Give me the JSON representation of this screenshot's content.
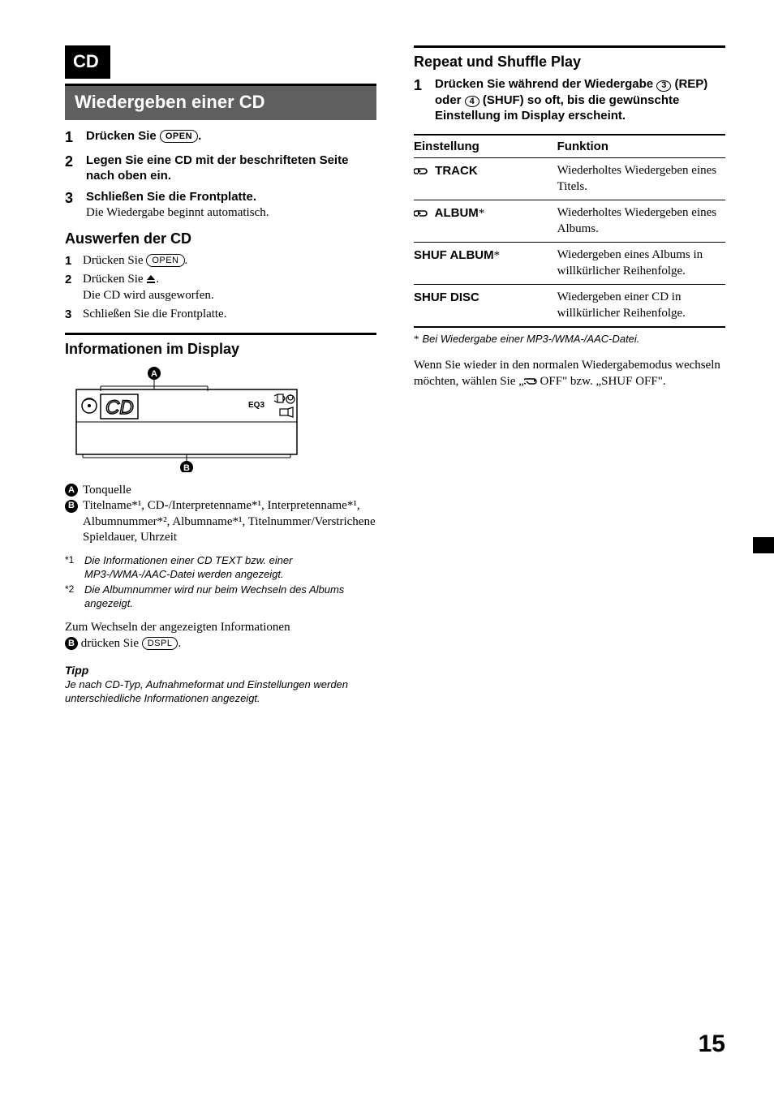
{
  "page_number": "15",
  "left": {
    "chapter": "CD",
    "section_title": "Wiedergeben einer CD",
    "steps_main": [
      {
        "n": "1",
        "text_before": "Drücken Sie ",
        "button": "OPEN",
        "text_after": "."
      },
      {
        "n": "2",
        "text": "Legen Sie eine CD mit der beschrifteten Seite nach oben ein."
      },
      {
        "n": "3",
        "text": "Schließen Sie die Frontplatte.",
        "sub": "Die Wiedergabe beginnt automatisch."
      }
    ],
    "eject_head": "Auswerfen der CD",
    "eject_steps": [
      {
        "n": "1",
        "text_before": "Drücken Sie ",
        "button": "OPEN",
        "text_after": "."
      },
      {
        "n": "2",
        "text_before": "Drücken Sie ",
        "icon": "eject",
        "text_after": ".",
        "sub": "Die CD wird ausgeworfen."
      },
      {
        "n": "3",
        "text": "Schließen Sie die Frontplatte."
      }
    ],
    "display_head": "Informationen im Display",
    "display_label_a": "A",
    "display_label_b": "B",
    "display_text_eq": "EQ3",
    "legend": [
      {
        "mark": "A",
        "text": "Tonquelle"
      },
      {
        "mark": "B",
        "text": "Titelname*¹, CD-/Interpretenname*¹, Interpretenname*¹, Albumnummer*², Albumname*¹, Titelnummer/Verstrichene Spieldauer, Uhrzeit"
      }
    ],
    "footnotes": [
      {
        "m": "*1",
        "t": "Die Informationen einer CD TEXT bzw. einer MP3-/WMA-/AAC-Datei werden angezeigt."
      },
      {
        "m": "*2",
        "t": "Die Albumnummer wird nur beim Wechseln des Albums angezeigt."
      }
    ],
    "switch_text_before": "Zum Wechseln der angezeigten Informationen ",
    "switch_mark": "B",
    "switch_text_mid": " drücken Sie ",
    "switch_button": "DSPL",
    "switch_text_after": ".",
    "tip_label": "Tipp",
    "tip_body": "Je nach CD-Typ, Aufnahmeformat und Einstellungen werden unterschiedliche Informationen angezeigt."
  },
  "right": {
    "head": "Repeat und Shuffle Play",
    "step": {
      "n": "1",
      "t1": "Drücken Sie während der Wiedergabe ",
      "c1": "3",
      "t2": " (REP) oder ",
      "c2": "4",
      "t3": " (SHUF) so oft, bis die gewünschte Einstellung im Display erscheint."
    },
    "table": {
      "h0": "Einstellung",
      "h1": "Funktion",
      "rows": [
        {
          "loop": true,
          "name": "TRACK",
          "star": "",
          "fn": "Wiederholtes Wiedergeben eines Titels."
        },
        {
          "loop": true,
          "name": "ALBUM",
          "star": "*",
          "fn": "Wiederholtes Wiedergeben eines Albums."
        },
        {
          "loop": false,
          "name": "SHUF ALBUM",
          "star": "*",
          "fn": "Wiedergeben eines Albums in willkürlicher Reihenfolge."
        },
        {
          "loop": false,
          "name": "SHUF DISC",
          "star": "",
          "fn": "Wiedergeben einer CD in willkürlicher Reihenfolge."
        }
      ]
    },
    "ast_note": "Bei Wiedergabe einer MP3-/WMA-/AAC-Datei.",
    "ast_mark": "*",
    "para_before": "Wenn Sie wieder in den normalen Wiedergabemodus wechseln möchten, wählen Sie „",
    "para_mid": " OFF\" bzw. „SHUF OFF\"."
  }
}
